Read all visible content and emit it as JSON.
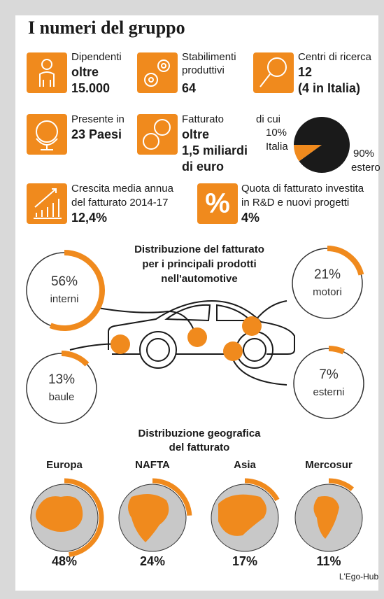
{
  "title": "I numeri del gruppo",
  "stats": [
    {
      "lines": [
        "Dipendenti",
        "oltre",
        "15.000"
      ]
    },
    {
      "lines": [
        "Stabilimenti",
        "produttivi",
        "64"
      ]
    },
    {
      "lines": [
        "Centri di ricerca",
        "12",
        "(4 in Italia)"
      ]
    },
    {
      "lines": [
        "Presente in",
        "23 Paesi"
      ]
    },
    {
      "lines": [
        "Fatturato",
        "oltre",
        "1,5 miliardi",
        "di euro"
      ]
    },
    {
      "lines": [
        "Crescita media annua",
        "del fatturato 2014-17",
        "12,4%"
      ]
    },
    {
      "lines": [
        "Quota di fatturato investita",
        "in R&D e nuovi progetti",
        "4%"
      ]
    }
  ],
  "revenue_split": {
    "heading": "di cui",
    "slices": [
      {
        "value": 10,
        "label": "10%",
        "name": "Italia",
        "color": "#f08a1d"
      },
      {
        "value": 90,
        "label": "90%",
        "name": "estero",
        "color": "#1a1a1a"
      }
    ]
  },
  "products": {
    "title_lines": [
      "Distribuzione del fatturato",
      "per i principali prodotti",
      "nell'automotive"
    ],
    "items": [
      {
        "value": 56,
        "label": "56%",
        "name": "interni"
      },
      {
        "value": 21,
        "label": "21%",
        "name": "motori"
      },
      {
        "value": 13,
        "label": "13%",
        "name": "baule"
      },
      {
        "value": 7,
        "label": "7%",
        "name": "esterni"
      }
    ]
  },
  "geography": {
    "title_lines": [
      "Distribuzione geografica",
      "del fatturato"
    ],
    "items": [
      {
        "name": "Europa",
        "value": 48,
        "label": "48%"
      },
      {
        "name": "NAFTA",
        "value": 24,
        "label": "24%"
      },
      {
        "name": "Asia",
        "value": 17,
        "label": "17%"
      },
      {
        "name": "Mercosur",
        "value": 11,
        "label": "11%"
      }
    ]
  },
  "source": "L'Ego-Hub"
}
